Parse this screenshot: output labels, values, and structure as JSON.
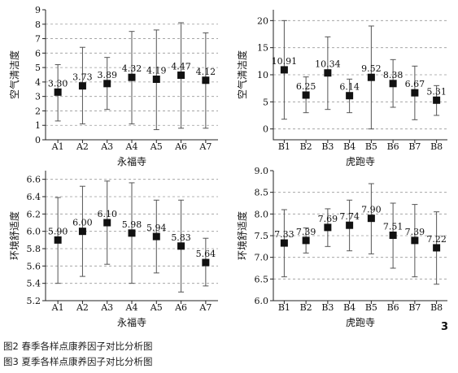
{
  "figure_number": "3",
  "captions": [
    "图2 春季各样点康养因子对比分析图",
    "图3 夏季各样点康养因子对比分析图"
  ],
  "chart_data": [
    {
      "type": "scatter",
      "panel": "top-left",
      "xlabel": "永福寺",
      "ylabel": "空气清洁度",
      "categories": [
        "A1",
        "A2",
        "A3",
        "A4",
        "A5",
        "A6",
        "A7"
      ],
      "values": [
        3.3,
        3.73,
        3.89,
        4.32,
        4.19,
        4.47,
        4.12
      ],
      "value_labels": [
        "3.30",
        "3.73",
        "3.89",
        "4.32",
        "4.19",
        "4.47",
        "4.12"
      ],
      "error_low": [
        1.3,
        1.1,
        2.1,
        1.1,
        0.7,
        0.8,
        0.8
      ],
      "error_high": [
        5.2,
        6.4,
        5.7,
        7.5,
        7.6,
        8.1,
        7.4
      ],
      "ylim": [
        0,
        9
      ],
      "yticks": [
        "0",
        "1",
        "2",
        "3",
        "4",
        "5",
        "6",
        "7",
        "8",
        "9"
      ],
      "grid": true
    },
    {
      "type": "scatter",
      "panel": "top-right",
      "xlabel": "虎跑寺",
      "ylabel": "空气清洁度",
      "categories": [
        "B1",
        "B2",
        "B3",
        "B4",
        "B5",
        "B6",
        "B7",
        "B8"
      ],
      "values": [
        10.91,
        6.25,
        10.34,
        6.14,
        9.52,
        8.38,
        6.67,
        5.31
      ],
      "value_labels": [
        "10.91",
        "6.25",
        "10.34",
        "6.14",
        "9.52",
        "8.38",
        "6.67",
        "5.31"
      ],
      "error_low": [
        1.8,
        3.0,
        3.6,
        3.0,
        0.0,
        4.0,
        1.7,
        2.5
      ],
      "error_high": [
        20.0,
        9.6,
        17.0,
        9.2,
        19.0,
        12.8,
        11.6,
        8.0
      ],
      "ylim": [
        -2,
        22
      ],
      "yticks": [
        "0",
        "5",
        "10",
        "15",
        "20"
      ],
      "grid": true
    },
    {
      "type": "scatter",
      "panel": "bottom-left",
      "xlabel": "永福寺",
      "ylabel": "环境舒适度",
      "categories": [
        "A1",
        "A2",
        "A3",
        "A4",
        "A5",
        "A6",
        "A7"
      ],
      "values": [
        5.9,
        6.0,
        6.1,
        5.98,
        5.94,
        5.83,
        5.64
      ],
      "value_labels": [
        "5.90",
        "6.00",
        "6.10",
        "5.98",
        "5.94",
        "5.83",
        "5.64"
      ],
      "error_low": [
        5.4,
        5.48,
        5.62,
        5.4,
        5.52,
        5.3,
        5.37
      ],
      "error_high": [
        6.39,
        6.52,
        6.58,
        6.56,
        6.36,
        6.36,
        5.92
      ],
      "ylim": [
        5.2,
        6.7
      ],
      "yticks": [
        "5.2",
        "5.4",
        "5.6",
        "5.8",
        "6.0",
        "6.2",
        "6.4",
        "6.6"
      ],
      "grid": true
    },
    {
      "type": "scatter",
      "panel": "bottom-right",
      "xlabel": "虎跑寺",
      "ylabel": "环境舒适度",
      "categories": [
        "B1",
        "B2",
        "B3",
        "B4",
        "B5",
        "B6",
        "B7",
        "B8"
      ],
      "values": [
        7.33,
        7.39,
        7.69,
        7.74,
        7.9,
        7.51,
        7.39,
        7.22
      ],
      "value_labels": [
        "7.33",
        "7.39",
        "7.69",
        "7.74",
        "7.90",
        "7.51",
        "7.39",
        "7.22"
      ],
      "error_low": [
        6.55,
        7.1,
        7.25,
        7.15,
        7.08,
        6.75,
        6.55,
        6.38
      ],
      "error_high": [
        8.1,
        7.68,
        8.12,
        8.32,
        8.7,
        8.25,
        8.22,
        8.05
      ],
      "ylim": [
        6.0,
        9.0
      ],
      "yticks": [
        "6.0",
        "6.5",
        "7.0",
        "7.5",
        "8.0",
        "8.5",
        "9.0"
      ],
      "grid": true
    }
  ]
}
